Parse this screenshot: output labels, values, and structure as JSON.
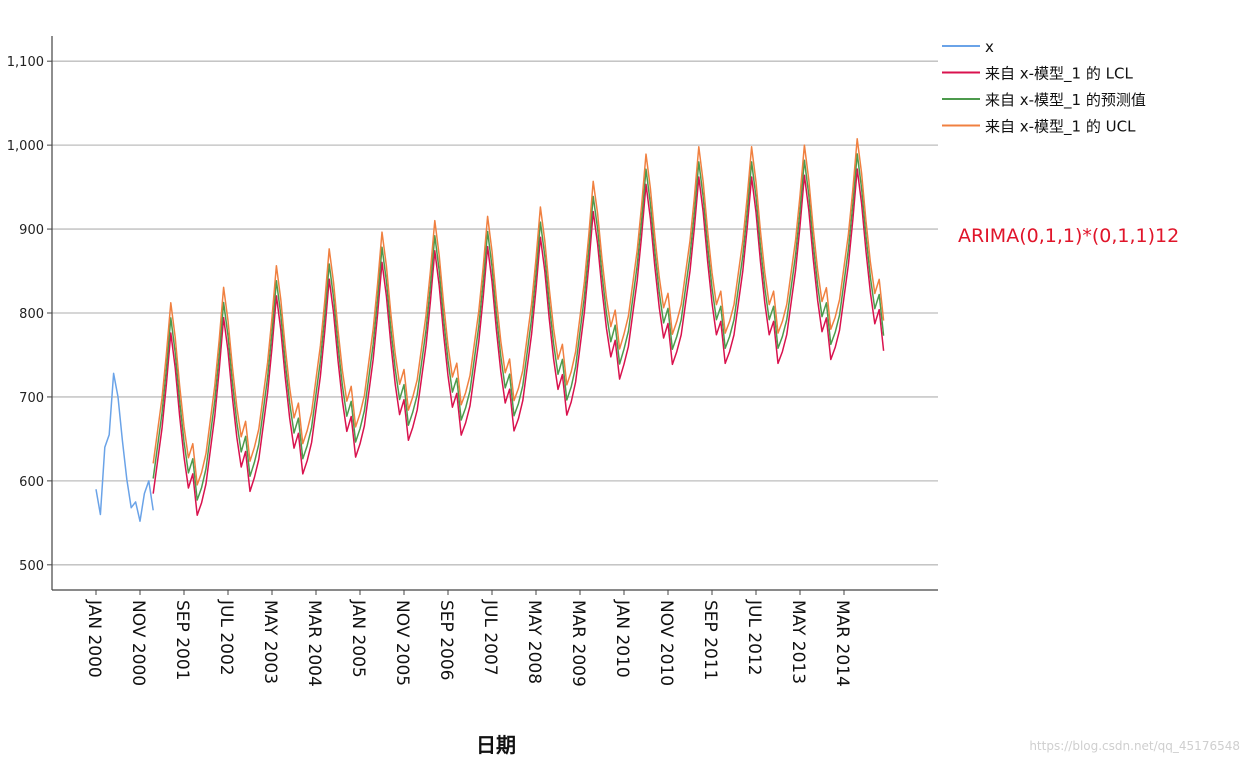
{
  "chart_data": {
    "type": "line",
    "xlabel": "日期",
    "ylabel": "",
    "ylim": [
      470,
      1130
    ],
    "yticks": [
      "500",
      "600",
      "700",
      "800",
      "900",
      "1,000",
      "1,100"
    ],
    "yticks_values": [
      500,
      600,
      700,
      800,
      900,
      1000,
      1100
    ],
    "grid": "horizontal",
    "legend_position": "top-right",
    "annotation": "ARIMA(0,1,1)*(0,1,1)12",
    "watermark": "https://blog.csdn.net/qq_45176548",
    "x_start": "JAN 2000",
    "x_end": "DEC 2014",
    "frequency": "monthly",
    "xtick_labels": [
      "JAN 2000",
      "NOV 2000",
      "SEP 2001",
      "JUL 2002",
      "MAY 2003",
      "MAR 2004",
      "JAN 2005",
      "NOV 2005",
      "SEP 2006",
      "JUL 2007",
      "MAY 2008",
      "MAR 2009",
      "JAN 2010",
      "NOV 2010",
      "SEP 2011",
      "JUL 2012",
      "MAY 2013",
      "MAR 2014"
    ],
    "xtick_months": [
      0,
      10,
      20,
      30,
      40,
      50,
      60,
      70,
      80,
      90,
      100,
      110,
      120,
      130,
      140,
      150,
      160,
      170
    ],
    "seasonal_shape": [
      -78,
      -58,
      -20,
      18,
      70,
      130,
      88,
      30,
      -20,
      -58,
      -42,
      -92
    ],
    "yearly_levels": [
      {
        "month": 12,
        "value": 660
      },
      {
        "month": 24,
        "value": 670
      },
      {
        "month": 36,
        "value": 700
      },
      {
        "month": 48,
        "value": 720
      },
      {
        "month": 60,
        "value": 740
      },
      {
        "month": 72,
        "value": 760
      },
      {
        "month": 84,
        "value": 765
      },
      {
        "month": 96,
        "value": 770
      },
      {
        "month": 108,
        "value": 790
      },
      {
        "month": 120,
        "value": 835
      },
      {
        "month": 132,
        "value": 850
      },
      {
        "month": 144,
        "value": 850
      },
      {
        "month": 156,
        "value": 850
      },
      {
        "month": 168,
        "value": 855
      },
      {
        "month": 179,
        "value": 865
      }
    ],
    "series": [
      {
        "name": "x",
        "color": "#6aa3e8",
        "month_range": [
          0,
          114
        ],
        "points": [
          {
            "month": 0,
            "value": 590
          },
          {
            "month": 1,
            "value": 560
          },
          {
            "month": 2,
            "value": 640
          },
          {
            "month": 3,
            "value": 655
          },
          {
            "month": 4,
            "value": 728
          },
          {
            "month": 5,
            "value": 700
          },
          {
            "month": 6,
            "value": 648
          },
          {
            "month": 7,
            "value": 602
          },
          {
            "month": 8,
            "value": 568
          },
          {
            "month": 9,
            "value": 575
          },
          {
            "month": 10,
            "value": 552
          },
          {
            "month": 11,
            "value": 585
          },
          {
            "month": 12,
            "value": 600
          },
          {
            "month": 13,
            "value": 565
          }
        ]
      },
      {
        "name": "来自 x-模型_1 的 LCL",
        "color": "#d9124e",
        "month_range": [
          13,
          179
        ],
        "offset": -18
      },
      {
        "name": "来自 x-模型_1 的预测值",
        "color": "#4c9a4c",
        "month_range": [
          13,
          179
        ],
        "offset": 0
      },
      {
        "name": "来自 x-模型_1 的 UCL",
        "color": "#f08040",
        "month_range": [
          13,
          179
        ],
        "offset": 18
      }
    ]
  }
}
